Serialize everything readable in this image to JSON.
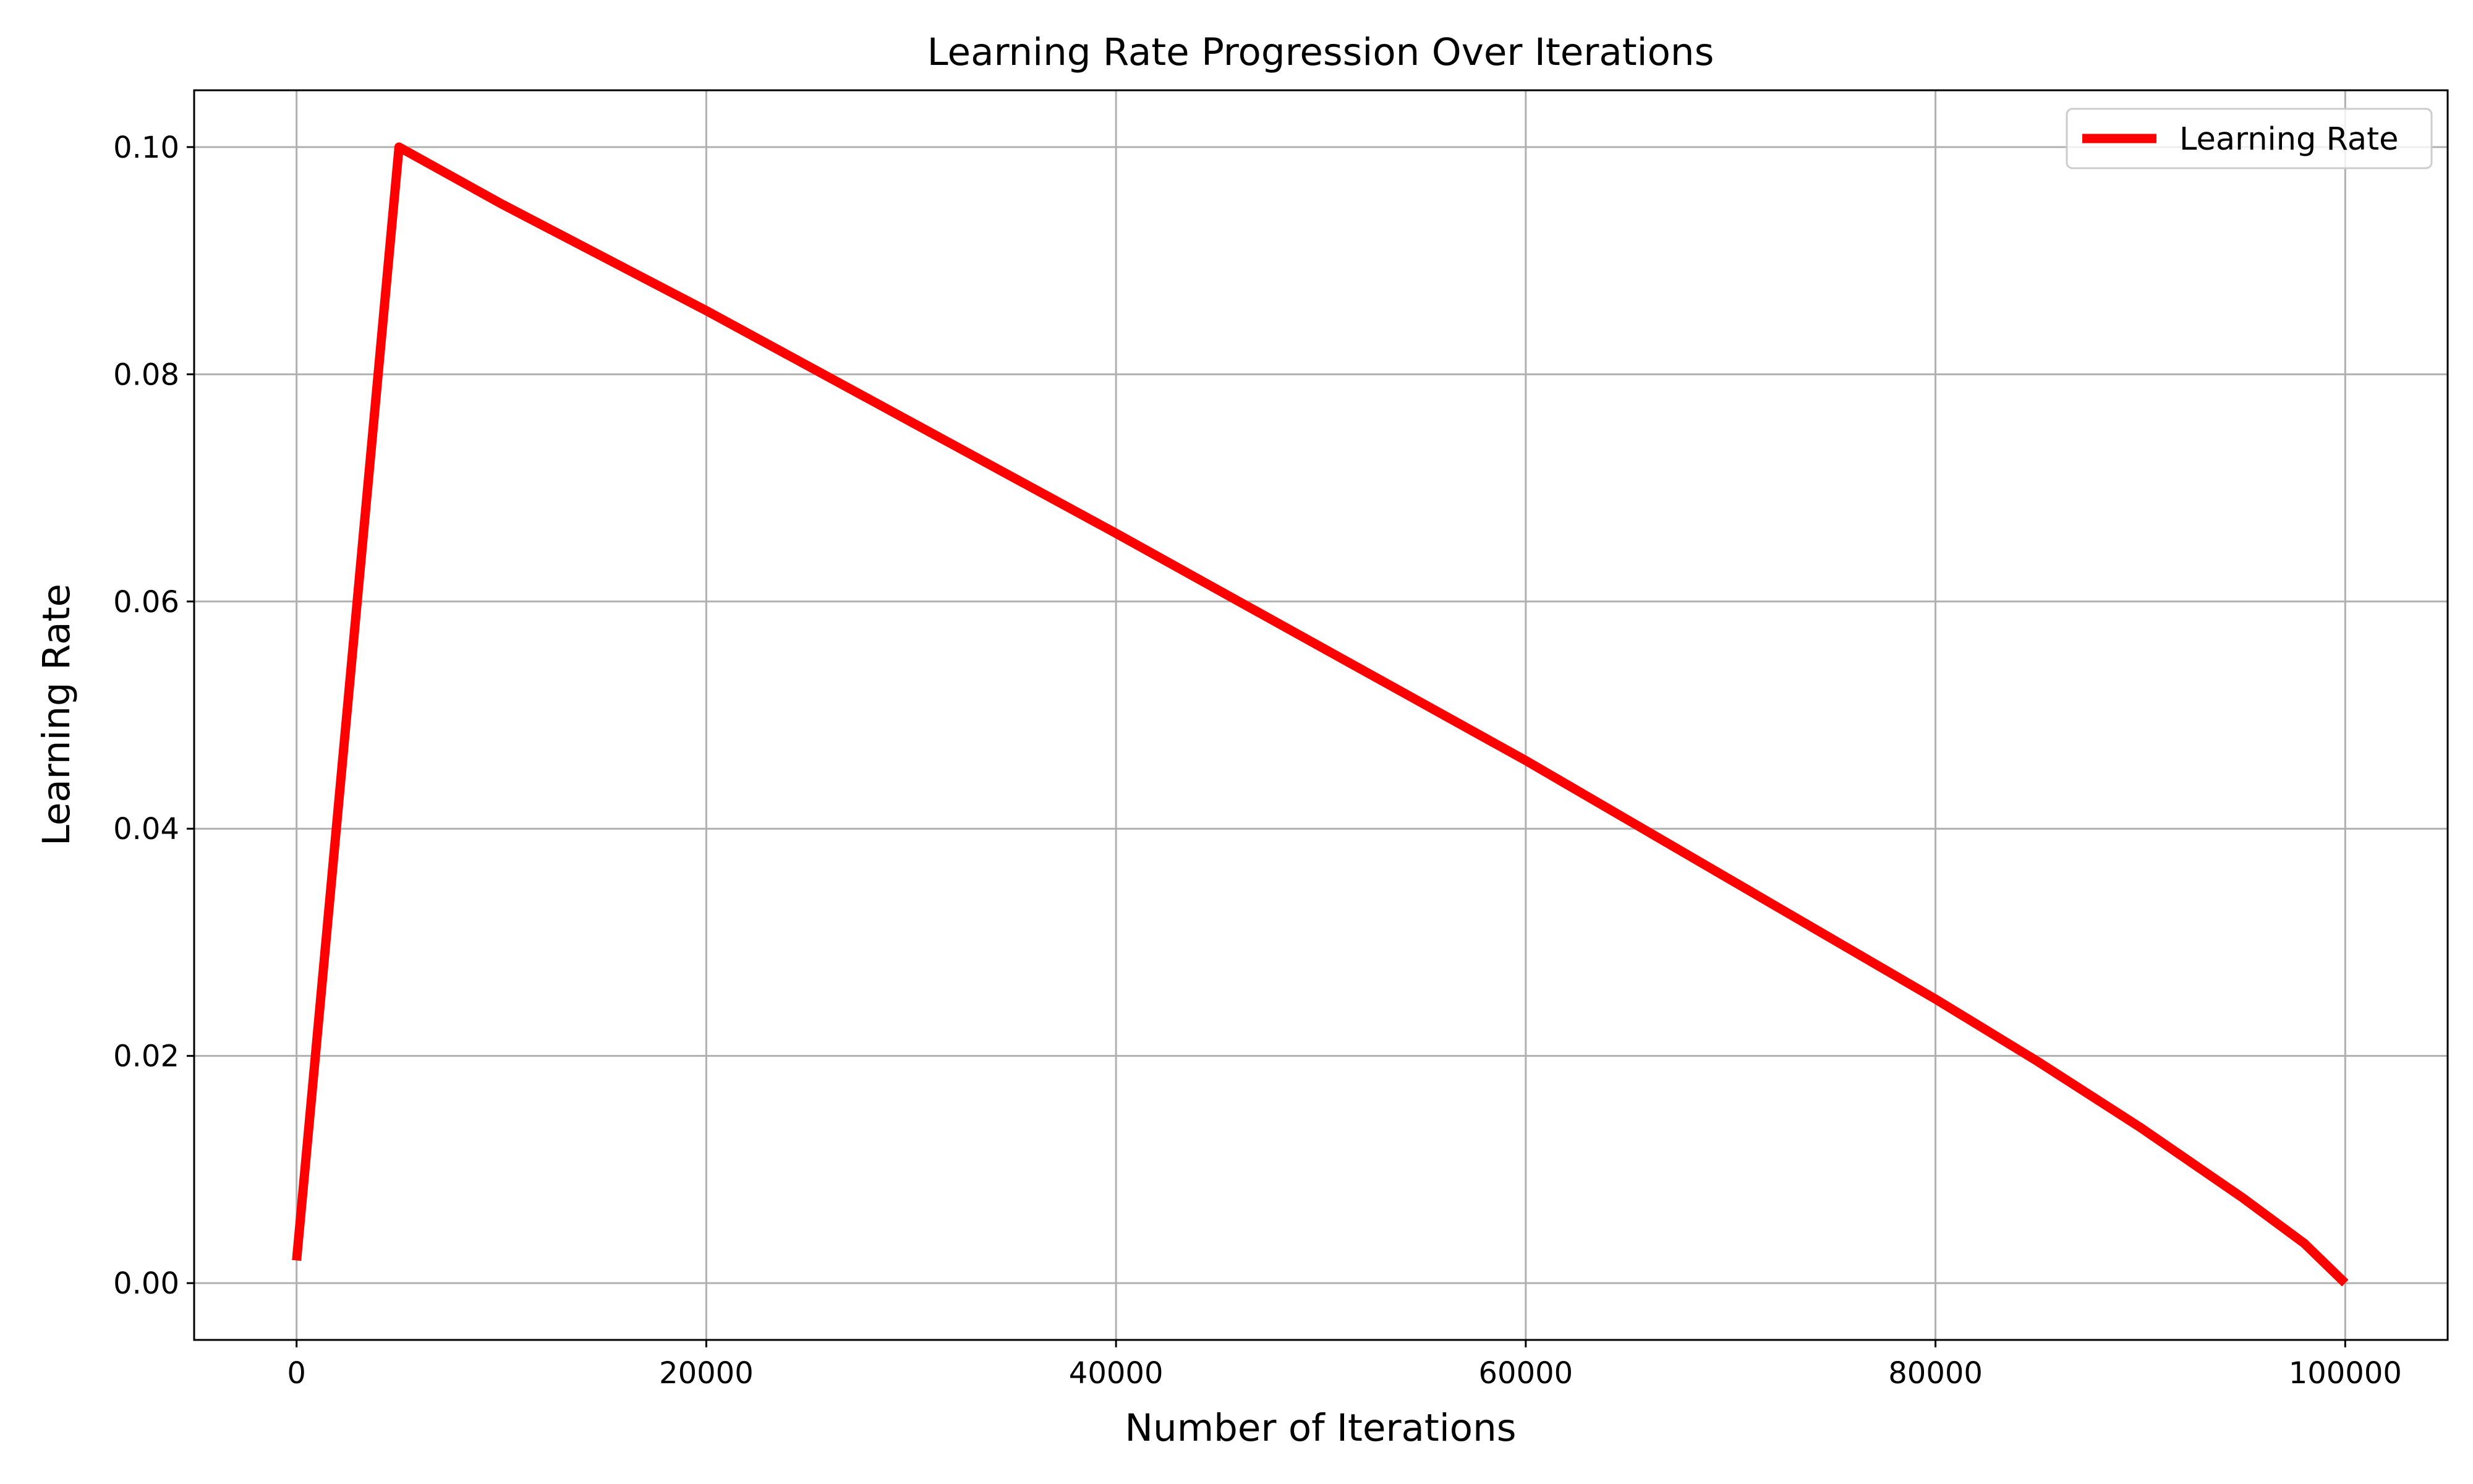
{
  "chart_data": {
    "type": "line",
    "title": "Learning Rate Progression Over Iterations",
    "xlabel": "Number of Iterations",
    "ylabel": "Learning Rate",
    "xlim": [
      -5000,
      105000
    ],
    "ylim": [
      -0.005,
      0.105
    ],
    "xticks": [
      0,
      20000,
      40000,
      60000,
      80000,
      100000
    ],
    "xtick_labels": [
      "0",
      "20000",
      "40000",
      "60000",
      "80000",
      "100000"
    ],
    "yticks": [
      0.0,
      0.02,
      0.04,
      0.06,
      0.08,
      0.1
    ],
    "ytick_labels": [
      "0.00",
      "0.02",
      "0.04",
      "0.06",
      "0.08",
      "0.10"
    ],
    "grid": true,
    "legend_position": "top-right",
    "series": [
      {
        "name": "Learning Rate",
        "color": "#ff0000",
        "x": [
          0,
          5000,
          10000,
          20000,
          30000,
          40000,
          50000,
          60000,
          70000,
          80000,
          85000,
          90000,
          95000,
          98000,
          100000
        ],
        "y": [
          0.002,
          0.1,
          0.095,
          0.0856,
          0.0758,
          0.066,
          0.056,
          0.046,
          0.0355,
          0.025,
          0.0195,
          0.0137,
          0.0075,
          0.0035,
          0.0
        ]
      }
    ]
  }
}
